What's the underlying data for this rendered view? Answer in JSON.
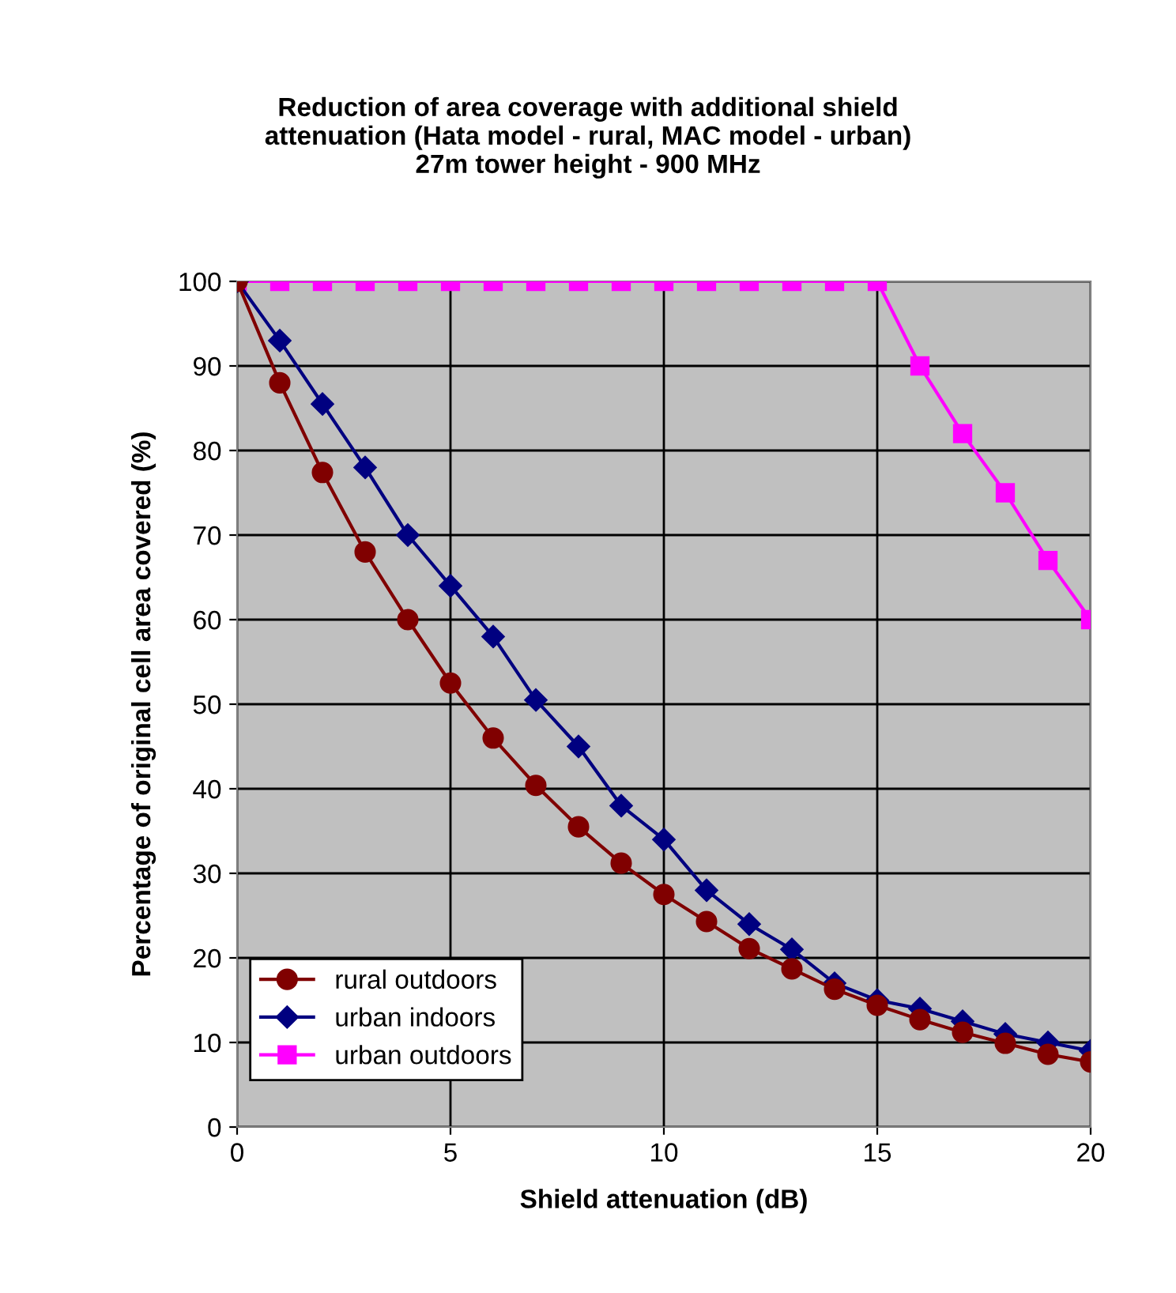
{
  "chart_data": {
    "type": "line",
    "title": "Reduction of area coverage with additional shield\nattenuation (Hata model - rural, MAC model - urban)\n27m tower height - 900 MHz",
    "xlabel": "Shield attenuation (dB)",
    "ylabel": "Percentage of original cell area covered (%)",
    "x": [
      0,
      1,
      2,
      3,
      4,
      5,
      6,
      7,
      8,
      9,
      10,
      11,
      12,
      13,
      14,
      15,
      16,
      17,
      18,
      19,
      20
    ],
    "series": [
      {
        "name": "rural outdoors",
        "color": "#800000",
        "marker": "circle",
        "values": [
          100,
          88,
          77.4,
          68,
          60,
          52.5,
          46,
          40.4,
          35.5,
          31.2,
          27.5,
          24.3,
          21.1,
          18.7,
          16.3,
          14.4,
          12.7,
          11.2,
          9.9,
          8.6,
          7.7
        ]
      },
      {
        "name": "urban indoors",
        "color": "#000080",
        "marker": "diamond",
        "values": [
          100,
          93,
          85.5,
          78,
          70,
          64,
          58,
          50.5,
          45,
          38,
          34,
          28,
          24,
          21,
          17,
          15,
          14,
          12.5,
          11,
          10,
          9
        ]
      },
      {
        "name": "urban outdoors",
        "color": "#ff00ff",
        "marker": "square",
        "values": [
          100,
          100,
          100,
          100,
          100,
          100,
          100,
          100,
          100,
          100,
          100,
          100,
          100,
          100,
          100,
          100,
          90,
          82,
          75,
          67,
          60
        ]
      }
    ],
    "xlim": [
      0,
      20
    ],
    "xticks": [
      0,
      5,
      10,
      15,
      20
    ],
    "ylim": [
      0,
      100
    ],
    "yticks": [
      0,
      10,
      20,
      30,
      40,
      50,
      60,
      70,
      80,
      90,
      100
    ],
    "grid": true,
    "legend": "bottom left"
  }
}
